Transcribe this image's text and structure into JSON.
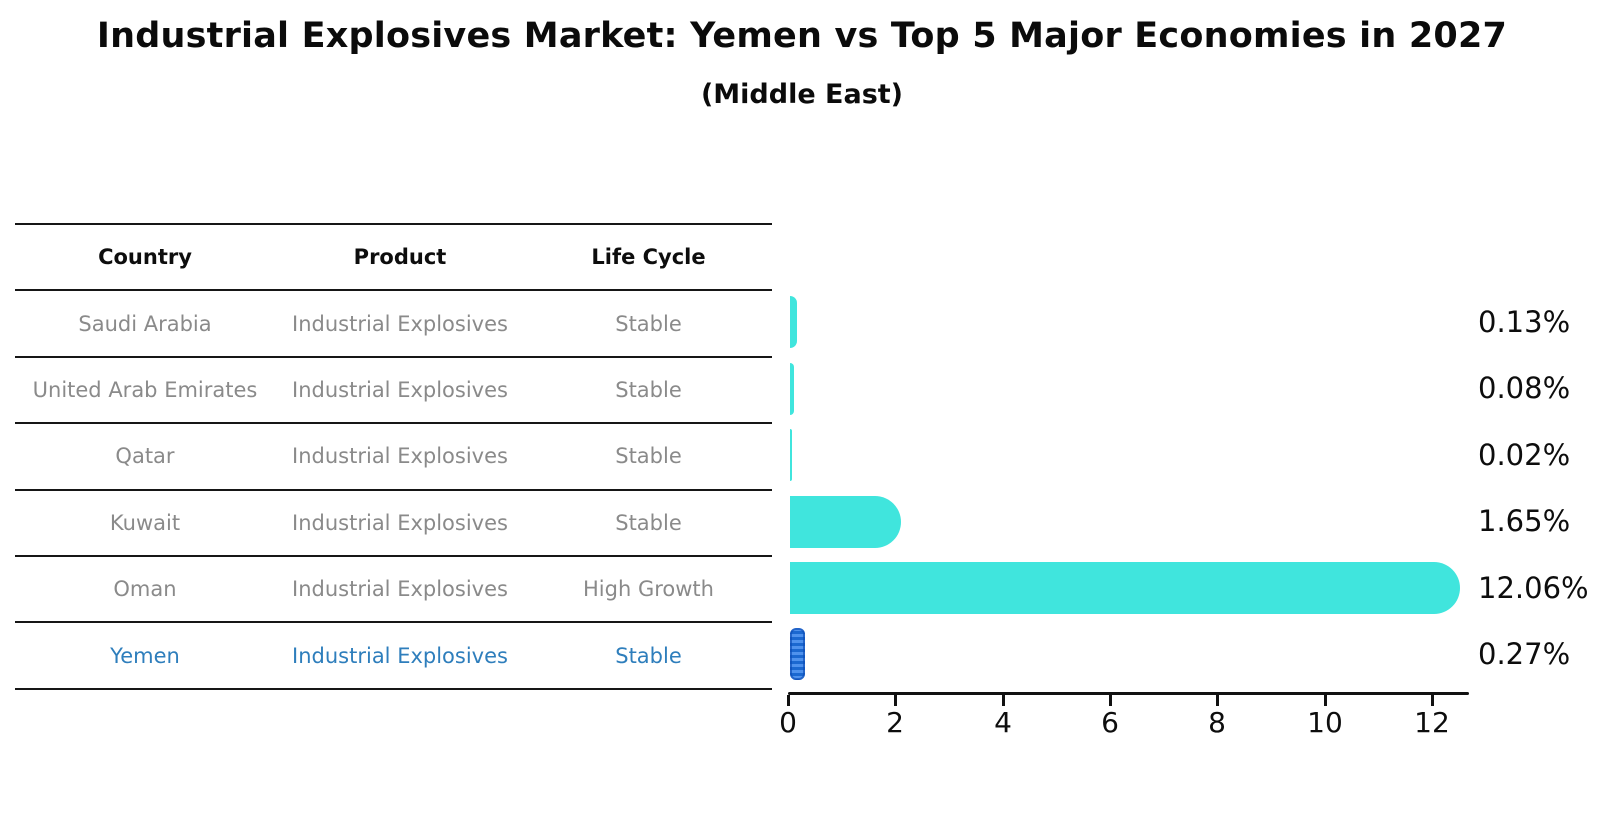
{
  "title": "Industrial Explosives Market: Yemen vs Top 5 Major Economies in 2027",
  "subtitle": "(Middle East)",
  "table": {
    "headers": [
      "Country",
      "Product",
      "Life Cycle"
    ],
    "rows": [
      {
        "country": "Saudi Arabia",
        "product": "Industrial Explosives",
        "life_cycle": "Stable",
        "highlight": false
      },
      {
        "country": "United Arab Emirates",
        "product": "Industrial Explosives",
        "life_cycle": "Stable",
        "highlight": false
      },
      {
        "country": "Qatar",
        "product": "Industrial Explosives",
        "life_cycle": "Stable",
        "highlight": false
      },
      {
        "country": "Kuwait",
        "product": "Industrial Explosives",
        "life_cycle": "Stable",
        "highlight": false
      },
      {
        "country": "Oman",
        "product": "Industrial Explosives",
        "life_cycle": "High Growth",
        "highlight": false
      },
      {
        "country": "Yemen",
        "product": "Industrial Explosives",
        "life_cycle": "Stable",
        "highlight": true
      }
    ]
  },
  "chart_data": {
    "type": "bar",
    "orientation": "horizontal",
    "title": "Industrial Explosives Market: Yemen vs Top 5 Major Economies in 2027",
    "subtitle": "(Middle East)",
    "categories": [
      "Saudi Arabia",
      "United Arab Emirates",
      "Qatar",
      "Kuwait",
      "Oman",
      "Yemen"
    ],
    "values": [
      0.13,
      0.08,
      0.02,
      1.65,
      12.06,
      0.27
    ],
    "value_labels": [
      "0.13%",
      "0.08%",
      "0.02%",
      "1.65%",
      "12.06%",
      "0.27%"
    ],
    "xticks": [
      0,
      2,
      4,
      6,
      8,
      10,
      12
    ],
    "xlim": [
      0,
      12.9
    ],
    "grid": false,
    "legend": false,
    "bar_color": "#40E5DD",
    "highlight_color": "#1E74E8",
    "highlight_category": "Yemen"
  },
  "colors": {
    "bar_cyan": "#40E5DD",
    "bar_blue": "#1E74E8",
    "highlight_text": "#2E7EBC",
    "table_text": "#8A8A8A",
    "axis_black": "#111111"
  }
}
